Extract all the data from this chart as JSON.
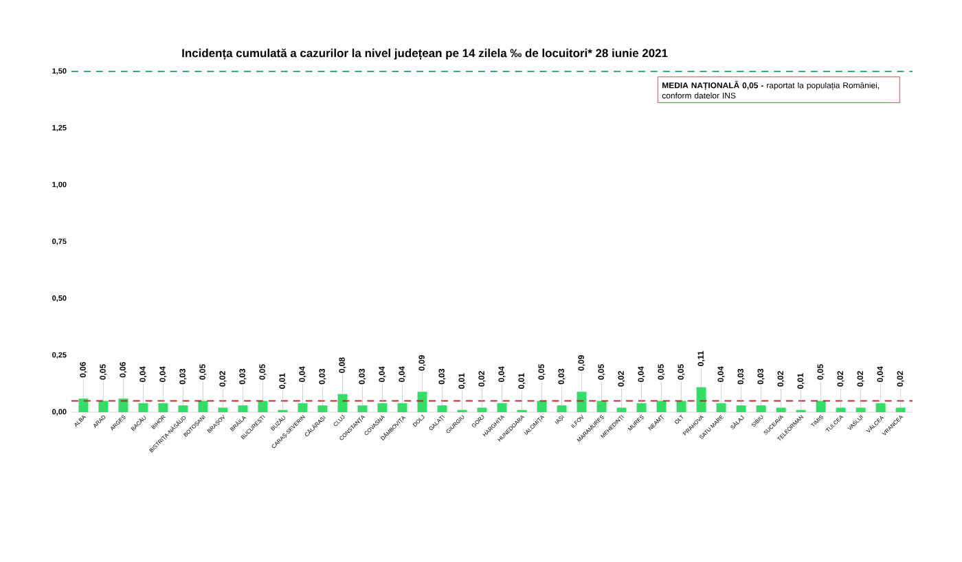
{
  "chart_data": {
    "type": "bar",
    "title": "Incidența cumulată a cazurilor la nivel județean pe 14 zilela ‰ de locuitori*  28 iunie 2021",
    "categories": [
      "ALBA",
      "ARAD",
      "ARGEȘ",
      "BACĂU",
      "BIHOR",
      "BISTRIȚA-NĂSĂUD",
      "BOTOȘANI",
      "BRAȘOV",
      "BRĂILA",
      "BUCUREȘTI",
      "BUZĂU",
      "CARAȘ-SEVERIN",
      "CĂLĂRAȘI",
      "CLUJ",
      "CONSTANȚA",
      "COVASNA",
      "DÂMBOVIȚA",
      "DOLJ",
      "GALAȚI",
      "GIURGIU",
      "GORJ",
      "HARGHITA",
      "HUNEDOARA",
      "IALOMIȚA",
      "IAȘI",
      "ILFOV",
      "MARAMUREȘ",
      "MEHEDINȚI",
      "MUREȘ",
      "NEAMȚ",
      "OLT",
      "PRAHOVA",
      "SATU MARE",
      "SĂLAJ",
      "SIBIU",
      "SUCEAVA",
      "TELEORMAN",
      "TIMIȘ",
      "TULCEA",
      "VASLUI",
      "VÂLCEA",
      "VRANCEA"
    ],
    "values": [
      0.06,
      0.05,
      0.06,
      0.04,
      0.04,
      0.03,
      0.05,
      0.02,
      0.03,
      0.05,
      0.01,
      0.04,
      0.03,
      0.08,
      0.03,
      0.04,
      0.04,
      0.09,
      0.03,
      0.01,
      0.02,
      0.04,
      0.01,
      0.05,
      0.03,
      0.09,
      0.05,
      0.02,
      0.04,
      0.05,
      0.05,
      0.11,
      0.04,
      0.03,
      0.03,
      0.02,
      0.01,
      0.05,
      0.02,
      0.02,
      0.04,
      0.02
    ],
    "value_labels": [
      "0,06",
      "0,05",
      "0,06",
      "0,04",
      "0,04",
      "0,03",
      "0,05",
      "0,02",
      "0,03",
      "0,05",
      "0,01",
      "0,04",
      "0,03",
      "0,08",
      "0,03",
      "0,04",
      "0,04",
      "0,09",
      "0,03",
      "0,01",
      "0,02",
      "0,04",
      "0,01",
      "0,05",
      "0,03",
      "0,09",
      "0,05",
      "0,02",
      "0,04",
      "0,05",
      "0,05",
      "0,11",
      "0,04",
      "0,03",
      "0,03",
      "0,02",
      "0,01",
      "0,05",
      "0,02",
      "0,02",
      "0,04",
      "0,02"
    ],
    "color": "#33dd66",
    "ylim": [
      0,
      1.5
    ],
    "yticks": [
      {
        "value": 0,
        "label": "0,00"
      },
      {
        "value": 0.25,
        "label": "0,25"
      },
      {
        "value": 0.5,
        "label": "0,50"
      },
      {
        "value": 0.75,
        "label": "0,75"
      },
      {
        "value": 1.0,
        "label": "1,00"
      },
      {
        "value": 1.25,
        "label": "1,25"
      },
      {
        "value": 1.5,
        "label": "1,50"
      }
    ],
    "ref_lines": [
      {
        "axis": "y",
        "value": 1.5,
        "color": "#33aa77",
        "line_style": "dashed"
      },
      {
        "axis": "y",
        "value": 0.05,
        "color": "#cc2222",
        "line_style": "dashed"
      }
    ],
    "annotations": [
      "**MEDIA NAȚIONALĂ 0,05 -** raportat la populația României, conform datelor INS"
    ],
    "grid": false
  }
}
